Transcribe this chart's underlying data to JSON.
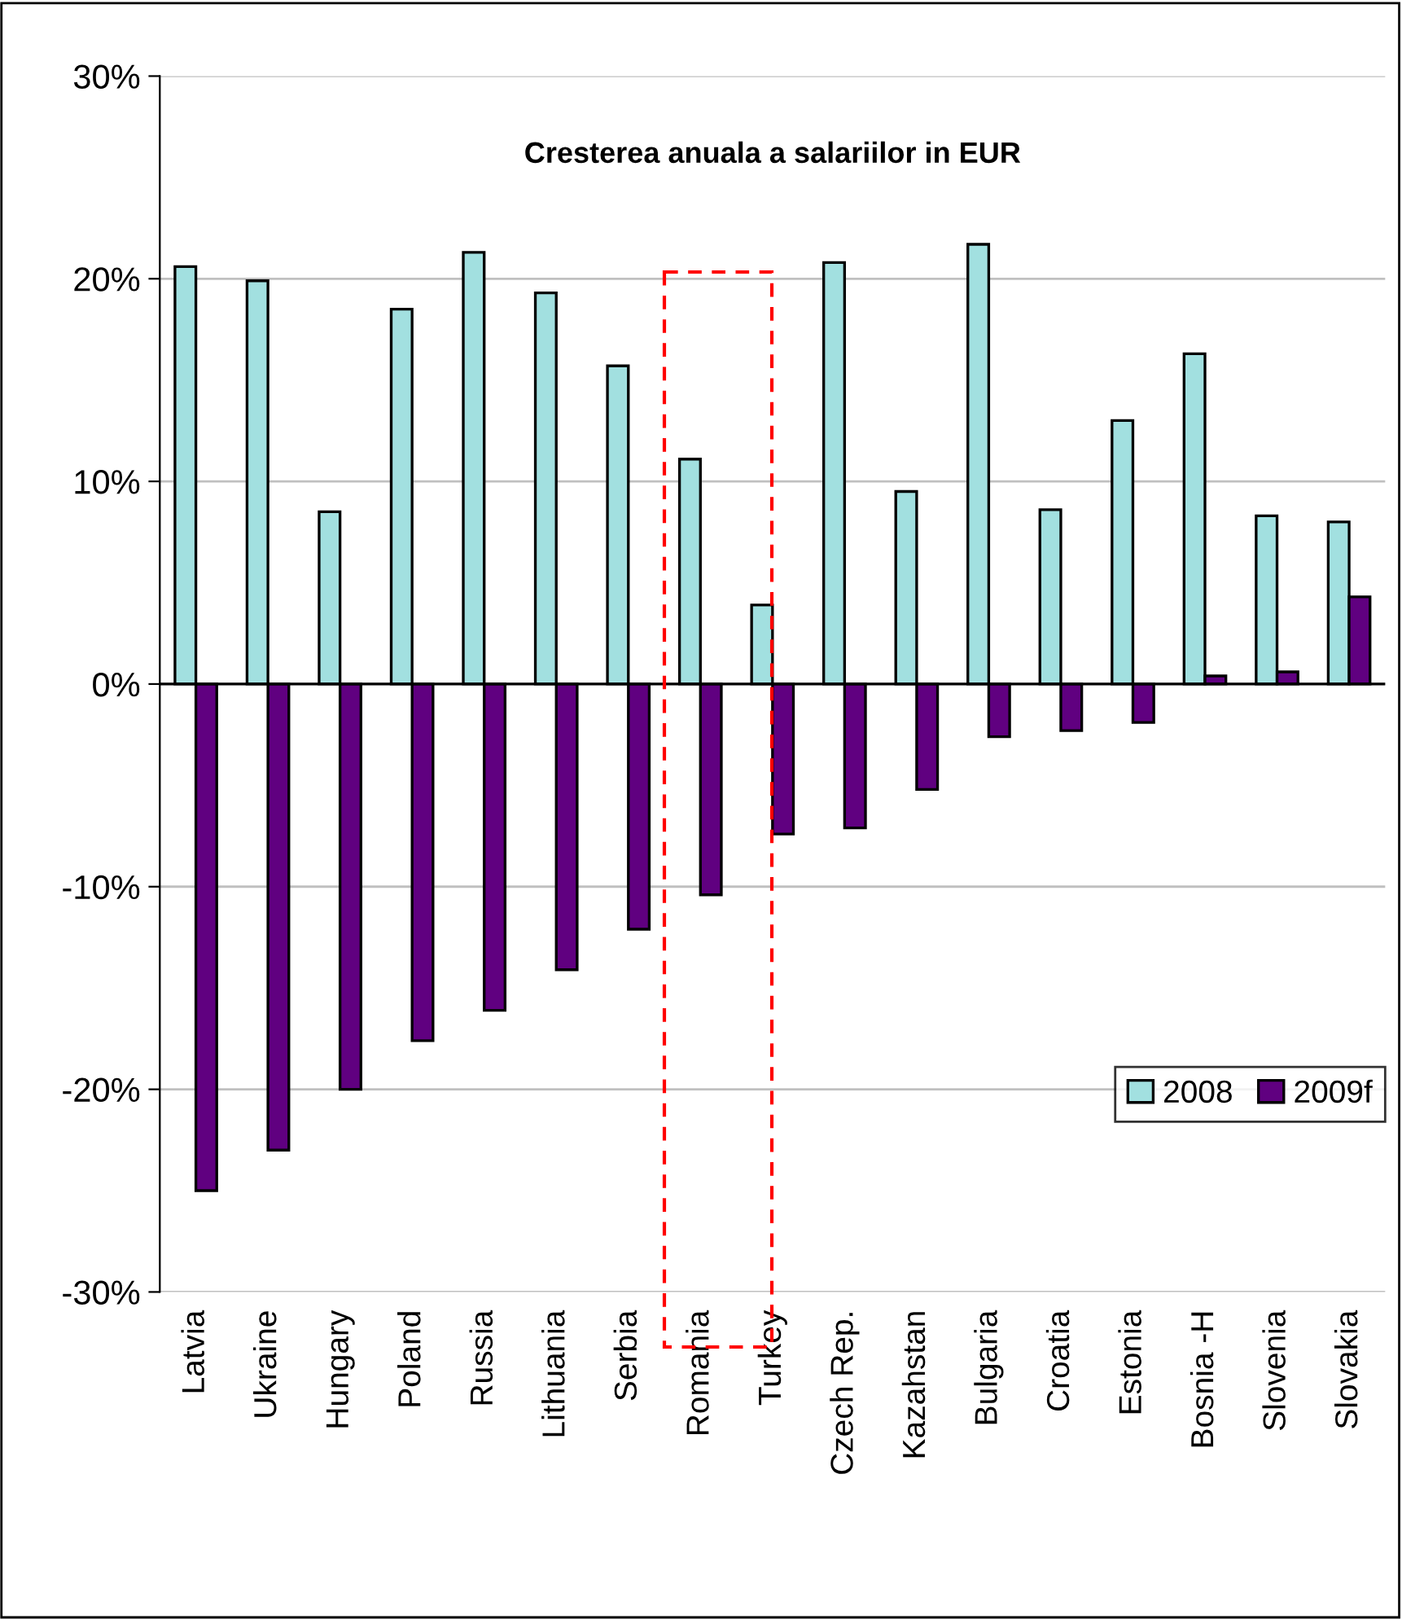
{
  "chart_data": {
    "type": "bar",
    "title": "Cresterea anuala a salariilor in EUR",
    "categories": [
      "Latvia",
      "Ukraine",
      "Hungary",
      "Poland",
      "Russia",
      "Lithuania",
      "Serbia",
      "Romania",
      "Turkey",
      "Czech Rep.",
      "Kazahstan",
      "Bulgaria",
      "Croatia",
      "Estonia",
      "Bosnia -H",
      "Slovenia",
      "Slovakia"
    ],
    "series": [
      {
        "name": "2008",
        "color": "#a2e0e0",
        "values": [
          20.6,
          19.9,
          8.5,
          18.5,
          21.3,
          19.3,
          15.7,
          11.1,
          3.9,
          20.8,
          9.5,
          21.7,
          8.6,
          13.0,
          16.3,
          8.3,
          8.0
        ]
      },
      {
        "name": "2009f",
        "color": "#600080",
        "values": [
          -25.0,
          -23.0,
          -20.0,
          -17.6,
          -16.1,
          -14.1,
          -12.1,
          -10.4,
          -7.4,
          -7.1,
          -5.2,
          -2.6,
          -2.3,
          -1.9,
          0.4,
          0.6,
          4.3
        ]
      }
    ],
    "ylim": [
      -30,
      30
    ],
    "yticks": [
      {
        "value": -30,
        "label": "-30%"
      },
      {
        "value": -20,
        "label": "-20%"
      },
      {
        "value": -10,
        "label": "-10%"
      },
      {
        "value": 0,
        "label": "0%"
      },
      {
        "value": 10,
        "label": "10%"
      },
      {
        "value": 20,
        "label": "20%"
      },
      {
        "value": 30,
        "label": "30%"
      }
    ],
    "grid": "y",
    "legend": "bottom right",
    "ref_lines": [
      {
        "axis": "y",
        "value": 0,
        "color": "#000000"
      }
    ]
  }
}
